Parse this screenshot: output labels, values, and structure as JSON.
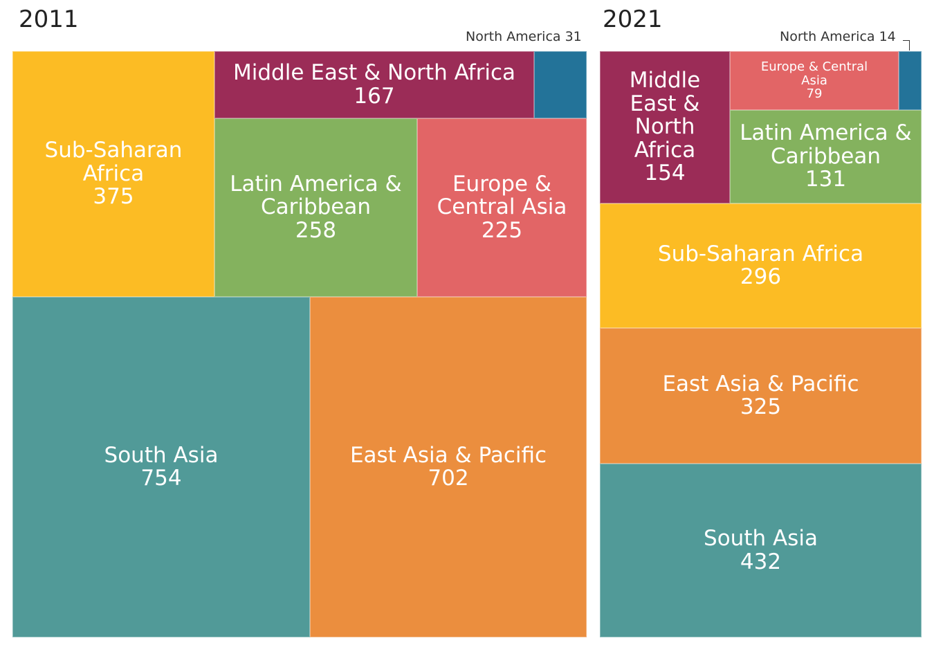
{
  "chart_data": [
    {
      "type": "treemap",
      "title": "2011",
      "colors": {
        "Sub-Saharan Africa": "#FCBC24",
        "Middle East & North Africa": "#9B2C57",
        "North America": "#237399",
        "Latin America & Caribbean": "#84B25E",
        "Europe & Central Asia": "#E26566",
        "South Asia": "#519A98",
        "East Asia & Pacific": "#EB8E3E"
      },
      "items": [
        {
          "name": "Sub-Saharan Africa",
          "label": "Sub-Saharan Africa",
          "value": 375
        },
        {
          "name": "Middle East & North Africa",
          "label": "Middle East & North Africa",
          "value": 167
        },
        {
          "name": "North America",
          "label": "North America 31",
          "value": 31
        },
        {
          "name": "Latin America & Caribbean",
          "label": "Latin America & Caribbean",
          "value": 258
        },
        {
          "name": "Europe & Central Asia",
          "label": "Europe & Central Asia",
          "value": 225
        },
        {
          "name": "South Asia",
          "label": "South Asia",
          "value": 754
        },
        {
          "name": "East Asia & Pacific",
          "label": "East Asia & Pacific",
          "value": 702
        }
      ]
    },
    {
      "type": "treemap",
      "title": "2021",
      "colors": {
        "Middle East & North Africa": "#9B2C57",
        "Europe & Central Asia": "#E26566",
        "North America": "#237399",
        "Latin America & Caribbean": "#84B25E",
        "Sub-Saharan Africa": "#FCBC24",
        "East Asia & Pacific": "#EB8E3E",
        "South Asia": "#519A98"
      },
      "items": [
        {
          "name": "Middle East & North Africa",
          "label": "Middle East & North Africa",
          "value": 154
        },
        {
          "name": "Europe & Central Asia",
          "label": "Europe & Central Asia",
          "value": 79
        },
        {
          "name": "North America",
          "label": "North America 14",
          "value": 14
        },
        {
          "name": "Latin America & Caribbean",
          "label": "Latin America & Caribbean",
          "value": 131
        },
        {
          "name": "Sub-Saharan Africa",
          "label": "Sub-Saharan Africa",
          "value": 296
        },
        {
          "name": "East Asia & Pacific",
          "label": "East Asia & Pacific",
          "value": 325
        },
        {
          "name": "South Asia",
          "label": "South Asia",
          "value": 432
        }
      ]
    }
  ]
}
